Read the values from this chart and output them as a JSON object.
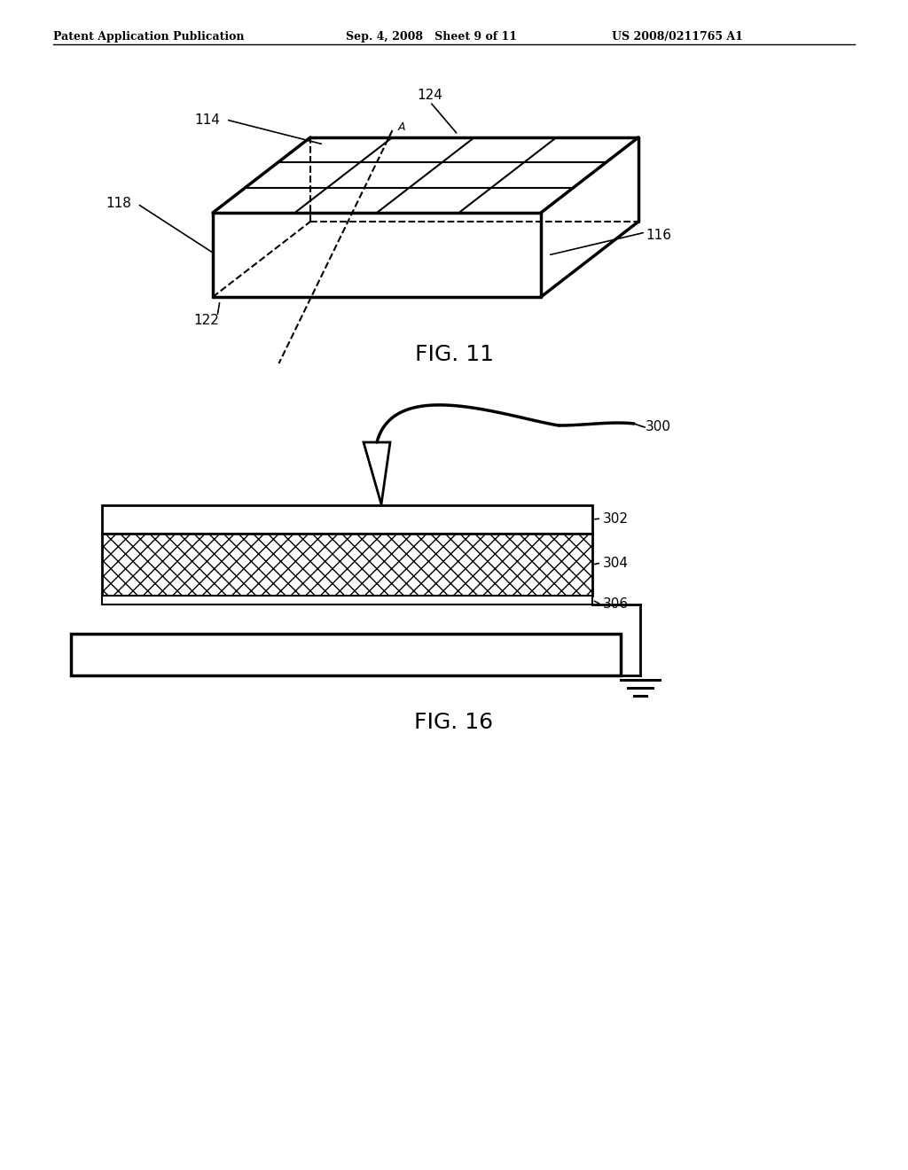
{
  "header_left": "Patent Application Publication",
  "header_mid": "Sep. 4, 2008   Sheet 9 of 11",
  "header_right": "US 2008/0211765 A1",
  "fig11_title": "FIG. 11",
  "fig16_title": "FIG. 16",
  "label_114": "114",
  "label_116": "116",
  "label_118": "118",
  "label_122": "122",
  "label_124": "124",
  "label_A": "A",
  "label_300": "300",
  "label_302": "302",
  "label_304": "304",
  "label_306": "306",
  "bg_color": "#ffffff",
  "line_color": "#000000"
}
